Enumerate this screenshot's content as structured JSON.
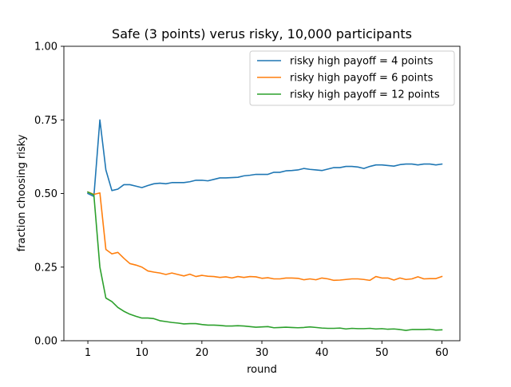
{
  "chart_data": {
    "type": "line",
    "title": "Safe (3 points) verus risky, 10,000 participants",
    "xlabel": "round",
    "ylabel": "fraction choosing risky",
    "xlim": [
      -3.0,
      63.0
    ],
    "ylim": [
      0.0,
      1.0
    ],
    "xticks": [
      1,
      10,
      20,
      30,
      40,
      50,
      60
    ],
    "xtick_labels": [
      "1",
      "10",
      "20",
      "30",
      "40",
      "50",
      "60"
    ],
    "yticks": [
      0.0,
      0.25,
      0.5,
      0.75,
      1.0
    ],
    "ytick_labels": [
      "0.00",
      "0.25",
      "0.50",
      "0.75",
      "1.00"
    ],
    "grid": false,
    "legend_position": "upper-right",
    "x": [
      1,
      2,
      3,
      4,
      5,
      6,
      7,
      8,
      9,
      10,
      11,
      12,
      13,
      14,
      15,
      16,
      17,
      18,
      19,
      20,
      21,
      22,
      23,
      24,
      25,
      26,
      27,
      28,
      29,
      30,
      31,
      32,
      33,
      34,
      35,
      36,
      37,
      38,
      39,
      40,
      41,
      42,
      43,
      44,
      45,
      46,
      47,
      48,
      49,
      50,
      51,
      52,
      53,
      54,
      55,
      56,
      57,
      58,
      59,
      60
    ],
    "series": [
      {
        "name": "risky high payoff = 4 points",
        "color": "#1f77b4",
        "values": [
          0.5,
          0.49,
          0.75,
          0.58,
          0.51,
          0.515,
          0.53,
          0.53,
          0.525,
          0.52,
          0.527,
          0.533,
          0.535,
          0.533,
          0.537,
          0.537,
          0.537,
          0.54,
          0.545,
          0.545,
          0.543,
          0.548,
          0.553,
          0.553,
          0.554,
          0.555,
          0.56,
          0.562,
          0.565,
          0.565,
          0.565,
          0.572,
          0.572,
          0.577,
          0.578,
          0.58,
          0.585,
          0.582,
          0.58,
          0.578,
          0.583,
          0.588,
          0.588,
          0.592,
          0.592,
          0.59,
          0.585,
          0.592,
          0.597,
          0.597,
          0.595,
          0.593,
          0.598,
          0.6,
          0.6,
          0.597,
          0.6,
          0.6,
          0.597,
          0.6
        ]
      },
      {
        "name": "risky high payoff = 6 points",
        "color": "#ff7f0e",
        "values": [
          0.505,
          0.497,
          0.502,
          0.31,
          0.295,
          0.3,
          0.28,
          0.262,
          0.257,
          0.25,
          0.237,
          0.233,
          0.23,
          0.225,
          0.23,
          0.225,
          0.22,
          0.226,
          0.218,
          0.222,
          0.219,
          0.218,
          0.215,
          0.217,
          0.213,
          0.218,
          0.215,
          0.218,
          0.217,
          0.212,
          0.214,
          0.21,
          0.21,
          0.213,
          0.213,
          0.212,
          0.207,
          0.21,
          0.207,
          0.213,
          0.21,
          0.205,
          0.206,
          0.208,
          0.21,
          0.21,
          0.208,
          0.205,
          0.218,
          0.213,
          0.213,
          0.206,
          0.213,
          0.208,
          0.21,
          0.217,
          0.21,
          0.211,
          0.211,
          0.218
        ]
      },
      {
        "name": "risky high payoff = 12 points",
        "color": "#2ca02c",
        "values": [
          0.505,
          0.495,
          0.25,
          0.145,
          0.133,
          0.113,
          0.1,
          0.09,
          0.083,
          0.077,
          0.077,
          0.075,
          0.068,
          0.065,
          0.062,
          0.06,
          0.057,
          0.058,
          0.058,
          0.055,
          0.053,
          0.053,
          0.052,
          0.05,
          0.05,
          0.051,
          0.05,
          0.048,
          0.046,
          0.047,
          0.048,
          0.044,
          0.045,
          0.046,
          0.045,
          0.044,
          0.045,
          0.047,
          0.045,
          0.043,
          0.042,
          0.042,
          0.043,
          0.04,
          0.042,
          0.041,
          0.041,
          0.042,
          0.04,
          0.041,
          0.039,
          0.04,
          0.038,
          0.035,
          0.038,
          0.038,
          0.038,
          0.039,
          0.036,
          0.037
        ]
      }
    ]
  }
}
